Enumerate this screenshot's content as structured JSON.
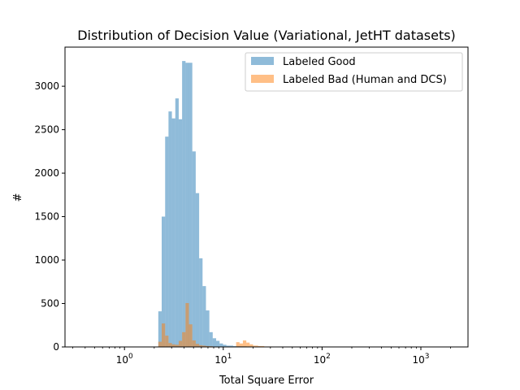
{
  "chart_data": {
    "type": "bar",
    "title": "Distribution of Decision Value (Variational, JetHT datasets)",
    "xlabel": "Total Square Error",
    "ylabel": "#",
    "xscale": "log",
    "xlim": [
      0.25,
      3000
    ],
    "ylim": [
      0,
      3450
    ],
    "x_ticks": [
      {
        "value": 1,
        "base": "10",
        "exp": "0"
      },
      {
        "value": 10,
        "base": "10",
        "exp": "1"
      },
      {
        "value": 100,
        "base": "10",
        "exp": "2"
      },
      {
        "value": 1000,
        "base": "10",
        "exp": "3"
      }
    ],
    "y_ticks": [
      0,
      500,
      1000,
      1500,
      2000,
      2500,
      3000
    ],
    "grid": false,
    "legend_position": "top-right",
    "series": [
      {
        "name": "Labeled Good",
        "color": "#1f77b4",
        "bins": [
          {
            "x0": 2.2,
            "x1": 2.38,
            "value": 410
          },
          {
            "x0": 2.38,
            "x1": 2.58,
            "value": 1500
          },
          {
            "x0": 2.58,
            "x1": 2.79,
            "value": 2420
          },
          {
            "x0": 2.79,
            "x1": 3.02,
            "value": 2710
          },
          {
            "x0": 3.02,
            "x1": 3.27,
            "value": 2630
          },
          {
            "x0": 3.27,
            "x1": 3.54,
            "value": 2860
          },
          {
            "x0": 3.54,
            "x1": 3.83,
            "value": 2620
          },
          {
            "x0": 3.83,
            "x1": 4.15,
            "value": 3290
          },
          {
            "x0": 4.15,
            "x1": 4.49,
            "value": 3270
          },
          {
            "x0": 4.49,
            "x1": 4.86,
            "value": 3270
          },
          {
            "x0": 4.86,
            "x1": 5.26,
            "value": 2250
          },
          {
            "x0": 5.26,
            "x1": 5.7,
            "value": 1770
          },
          {
            "x0": 5.7,
            "x1": 6.17,
            "value": 1020
          },
          {
            "x0": 6.17,
            "x1": 6.68,
            "value": 700
          },
          {
            "x0": 6.68,
            "x1": 7.23,
            "value": 420
          },
          {
            "x0": 7.23,
            "x1": 7.82,
            "value": 170
          },
          {
            "x0": 7.82,
            "x1": 8.47,
            "value": 100
          },
          {
            "x0": 8.47,
            "x1": 9.17,
            "value": 70
          },
          {
            "x0": 9.17,
            "x1": 9.93,
            "value": 40
          },
          {
            "x0": 9.93,
            "x1": 10.75,
            "value": 25
          },
          {
            "x0": 10.75,
            "x1": 12.6,
            "value": 15
          },
          {
            "x0": 12.6,
            "x1": 14.8,
            "value": 10
          },
          {
            "x0": 14.8,
            "x1": 17.3,
            "value": 8
          },
          {
            "x0": 17.3,
            "x1": 20.3,
            "value": 6
          },
          {
            "x0": 20.3,
            "x1": 23.8,
            "value": 5
          },
          {
            "x0": 23.8,
            "x1": 27.9,
            "value": 4
          },
          {
            "x0": 27.9,
            "x1": 32.7,
            "value": 3
          },
          {
            "x0": 32.7,
            "x1": 45,
            "value": 2
          },
          {
            "x0": 45,
            "x1": 80,
            "value": 2
          },
          {
            "x0": 80,
            "x1": 150,
            "value": 1
          },
          {
            "x0": 150,
            "x1": 300,
            "value": 1
          },
          {
            "x0": 300,
            "x1": 600,
            "value": 1
          },
          {
            "x0": 600,
            "x1": 1200,
            "value": 1
          },
          {
            "x0": 1200,
            "x1": 2000,
            "value": 1
          }
        ]
      },
      {
        "name": "Labeled Bad (Human and DCS)",
        "color": "#ff7f0e",
        "bins": [
          {
            "x0": 2.2,
            "x1": 2.38,
            "value": 60
          },
          {
            "x0": 2.38,
            "x1": 2.58,
            "value": 270
          },
          {
            "x0": 2.58,
            "x1": 2.79,
            "value": 130
          },
          {
            "x0": 2.79,
            "x1": 3.02,
            "value": 45
          },
          {
            "x0": 3.02,
            "x1": 3.27,
            "value": 30
          },
          {
            "x0": 3.27,
            "x1": 3.54,
            "value": 25
          },
          {
            "x0": 3.54,
            "x1": 3.83,
            "value": 70
          },
          {
            "x0": 3.83,
            "x1": 4.15,
            "value": 170
          },
          {
            "x0": 4.15,
            "x1": 4.49,
            "value": 505
          },
          {
            "x0": 4.49,
            "x1": 4.86,
            "value": 260
          },
          {
            "x0": 4.86,
            "x1": 5.26,
            "value": 75
          },
          {
            "x0": 5.26,
            "x1": 5.7,
            "value": 35
          },
          {
            "x0": 5.7,
            "x1": 6.17,
            "value": 20
          },
          {
            "x0": 6.17,
            "x1": 6.68,
            "value": 15
          },
          {
            "x0": 6.68,
            "x1": 7.23,
            "value": 10
          },
          {
            "x0": 7.23,
            "x1": 7.82,
            "value": 8
          },
          {
            "x0": 13.5,
            "x1": 14.6,
            "value": 55
          },
          {
            "x0": 14.6,
            "x1": 15.8,
            "value": 40
          },
          {
            "x0": 15.8,
            "x1": 17.1,
            "value": 75
          },
          {
            "x0": 17.1,
            "x1": 18.5,
            "value": 50
          },
          {
            "x0": 18.5,
            "x1": 20.0,
            "value": 30
          },
          {
            "x0": 20.0,
            "x1": 22.5,
            "value": 15
          },
          {
            "x0": 22.5,
            "x1": 26.0,
            "value": 10
          },
          {
            "x0": 26.0,
            "x1": 32.0,
            "value": 5
          }
        ]
      }
    ]
  }
}
